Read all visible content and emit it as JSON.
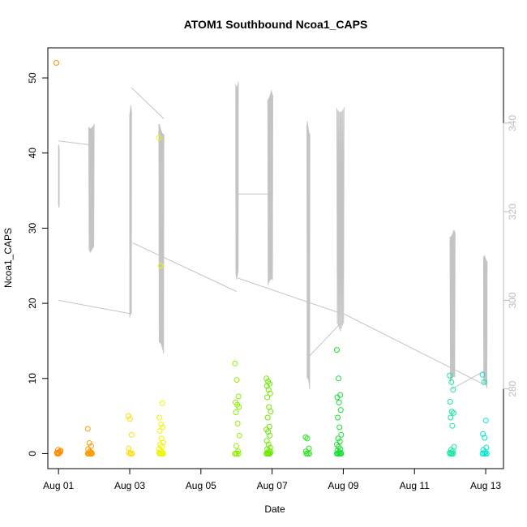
{
  "chart_data": {
    "type": "scatter",
    "title": "ATOM1 Southbound Ncoa1_CAPS",
    "xlabel": "Date",
    "ylabel": "Ncoa1_CAPS",
    "x_ticks": [
      {
        "day": 1,
        "label": "Aug 01"
      },
      {
        "day": 3,
        "label": "Aug 03"
      },
      {
        "day": 5,
        "label": "Aug 05"
      },
      {
        "day": 7,
        "label": "Aug 07"
      },
      {
        "day": 9,
        "label": "Aug 09"
      },
      {
        "day": 11,
        "label": "Aug 11"
      },
      {
        "day": 13,
        "label": "Aug 13"
      }
    ],
    "xlim_days": [
      0.7,
      13.5
    ],
    "ylim": [
      -2,
      54
    ],
    "y_ticks": [
      0,
      10,
      20,
      30,
      40,
      50
    ],
    "y2lim": [
      262,
      357
    ],
    "y2_ticks": [
      280,
      300,
      320,
      340
    ],
    "grid": false,
    "colors": {
      "axis": "#000000",
      "secondary_axis": "#bdbdbd",
      "secondary_line": "#c4c4c4"
    },
    "scatter_series": [
      {
        "day": 1.0,
        "color": "#ff8c00",
        "values": [
          52,
          0.5,
          0.3,
          0.1,
          0.0,
          0.2,
          0.0,
          0.1,
          0.4,
          0.0
        ]
      },
      {
        "day": 1.88,
        "color": "#ff9a00",
        "values": [
          3.3,
          1.4,
          1.0,
          0.6,
          0.3,
          0.1,
          0.0,
          0.0,
          0.0,
          0.0,
          0.1,
          0.0,
          0.2,
          0.0,
          0.0
        ]
      },
      {
        "day": 3.02,
        "color": "#ffdc00",
        "values": [
          5.0,
          4.6,
          2.5,
          0.7,
          0.0,
          0.0,
          0.1,
          0.0
        ]
      },
      {
        "day": 3.88,
        "color": "#eef500",
        "values": [
          42,
          25,
          6.7,
          4.8,
          3.9,
          3.5,
          3.0,
          2.0,
          1.5,
          1.2,
          0.9,
          0.6,
          0.4,
          0.2,
          0.1,
          0.0,
          0.0,
          0.0,
          0.0,
          0.0,
          0.0
        ]
      },
      {
        "day": 6.02,
        "color": "#8cf000",
        "values": [
          12.0,
          9.8,
          7.6,
          6.8,
          6.5,
          6.2,
          5.5,
          4.0,
          2.4,
          1.0,
          0.3,
          0.0,
          0.0,
          0.0,
          0.0
        ]
      },
      {
        "day": 6.9,
        "color": "#6ee800",
        "values": [
          10.0,
          9.6,
          9.3,
          9.0,
          8.5,
          8.0,
          7.5,
          6.2,
          5.6,
          4.8,
          3.6,
          3.2,
          2.9,
          2.4,
          1.7,
          1.2,
          0.8,
          0.6,
          0.4,
          0.2,
          0.1,
          0.0,
          0.0,
          0.0,
          0.0,
          0.0,
          0.0
        ]
      },
      {
        "day": 8.0,
        "color": "#2ae020",
        "values": [
          2.2,
          2.0,
          0.7,
          0.3,
          0.0,
          0.0,
          0.0
        ]
      },
      {
        "day": 8.88,
        "color": "#18e030",
        "values": [
          13.8,
          10.0,
          7.8,
          7.5,
          6.8,
          5.8,
          4.8,
          3.5,
          2.5,
          2.0,
          1.6,
          1.2,
          0.9,
          0.6,
          0.4,
          0.2,
          0.1,
          0.0,
          0.0,
          0.0,
          0.0,
          0.0,
          0.0
        ]
      },
      {
        "day": 12.05,
        "color": "#10e8a0",
        "values": [
          10.4,
          9.5,
          8.5,
          6.9,
          5.6,
          5.4,
          4.8,
          3.7,
          0.9,
          0.5,
          0.3,
          0.1,
          0.0,
          0.0,
          0.0,
          0.0
        ]
      },
      {
        "day": 12.97,
        "color": "#00e8c8",
        "values": [
          10.5,
          9.5,
          4.4,
          2.6,
          2.1,
          0.8,
          0.5,
          0.2,
          0.0,
          0.0,
          0.0,
          0.0
        ]
      }
    ],
    "secondary_line_bursts": [
      {
        "x_start": 1.0,
        "x_end": 1.02,
        "low": 320,
        "high": 336
      },
      {
        "x_start": 1.85,
        "x_end": 2.0,
        "low": 309,
        "high": 342
      },
      {
        "x_start": 3.0,
        "x_end": 3.05,
        "low": 292,
        "high": 347
      },
      {
        "x_start": 3.82,
        "x_end": 3.96,
        "low": 285,
        "high": 343
      },
      {
        "x_start": 5.98,
        "x_end": 6.05,
        "low": 302,
        "high": 353
      },
      {
        "x_start": 6.88,
        "x_end": 7.02,
        "low": 300,
        "high": 350
      },
      {
        "x_start": 7.98,
        "x_end": 8.06,
        "low": 276,
        "high": 344
      },
      {
        "x_start": 8.82,
        "x_end": 9.02,
        "low": 290,
        "high": 348
      },
      {
        "x_start": 12.0,
        "x_end": 12.14,
        "low": 279,
        "high": 318
      },
      {
        "x_start": 12.94,
        "x_end": 13.04,
        "low": 278,
        "high": 312
      }
    ],
    "secondary_line_connectors": [
      [
        1.0,
        336,
        1.98,
        335
      ],
      [
        1.0,
        300,
        3.0,
        297
      ],
      [
        3.05,
        348,
        3.96,
        341
      ],
      [
        3.08,
        313,
        6.0,
        302
      ],
      [
        6.05,
        324,
        6.96,
        324
      ],
      [
        6.05,
        305,
        8.95,
        297
      ],
      [
        8.0,
        287,
        8.95,
        295
      ],
      [
        9.0,
        297,
        12.95,
        281
      ],
      [
        12.05,
        280,
        12.95,
        284
      ]
    ]
  }
}
